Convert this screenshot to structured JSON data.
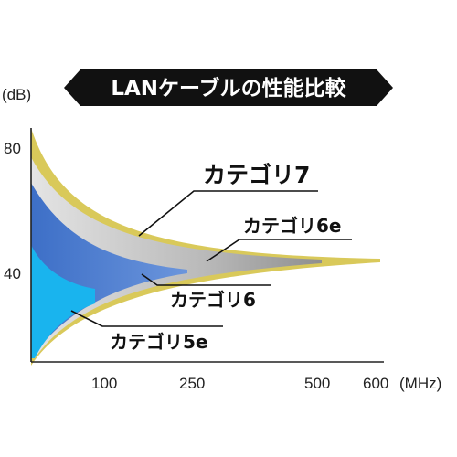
{
  "chart_data": {
    "type": "area",
    "title": "LANケーブルの性能比較",
    "ylabel": "(dB)",
    "xlabel": "(MHz)",
    "y_ticks": [
      80,
      40
    ],
    "x_ticks": [
      "100",
      "250",
      "500",
      "600"
    ],
    "ylim": [
      0,
      100
    ],
    "series": [
      {
        "name": "カテゴリ7",
        "max_frequency_mhz": 600,
        "color": "#d9c95a"
      },
      {
        "name": "カテゴリ6e",
        "max_frequency_mhz": 500,
        "color": "#a8a8a8"
      },
      {
        "name": "カテゴリ6",
        "max_frequency_mhz": 250,
        "color": "#4f7fcf"
      },
      {
        "name": "カテゴリ5e",
        "max_frequency_mhz": 100,
        "color": "#19b4ee"
      }
    ]
  },
  "colors": {
    "title_banner": "#111111",
    "axis": "#222222",
    "cat7_edge": "#d9c95a",
    "cat6e_fill": "#a8a8a8",
    "cat6_fill": "#4f7fcf",
    "cat5e_fill": "#19b4ee"
  }
}
